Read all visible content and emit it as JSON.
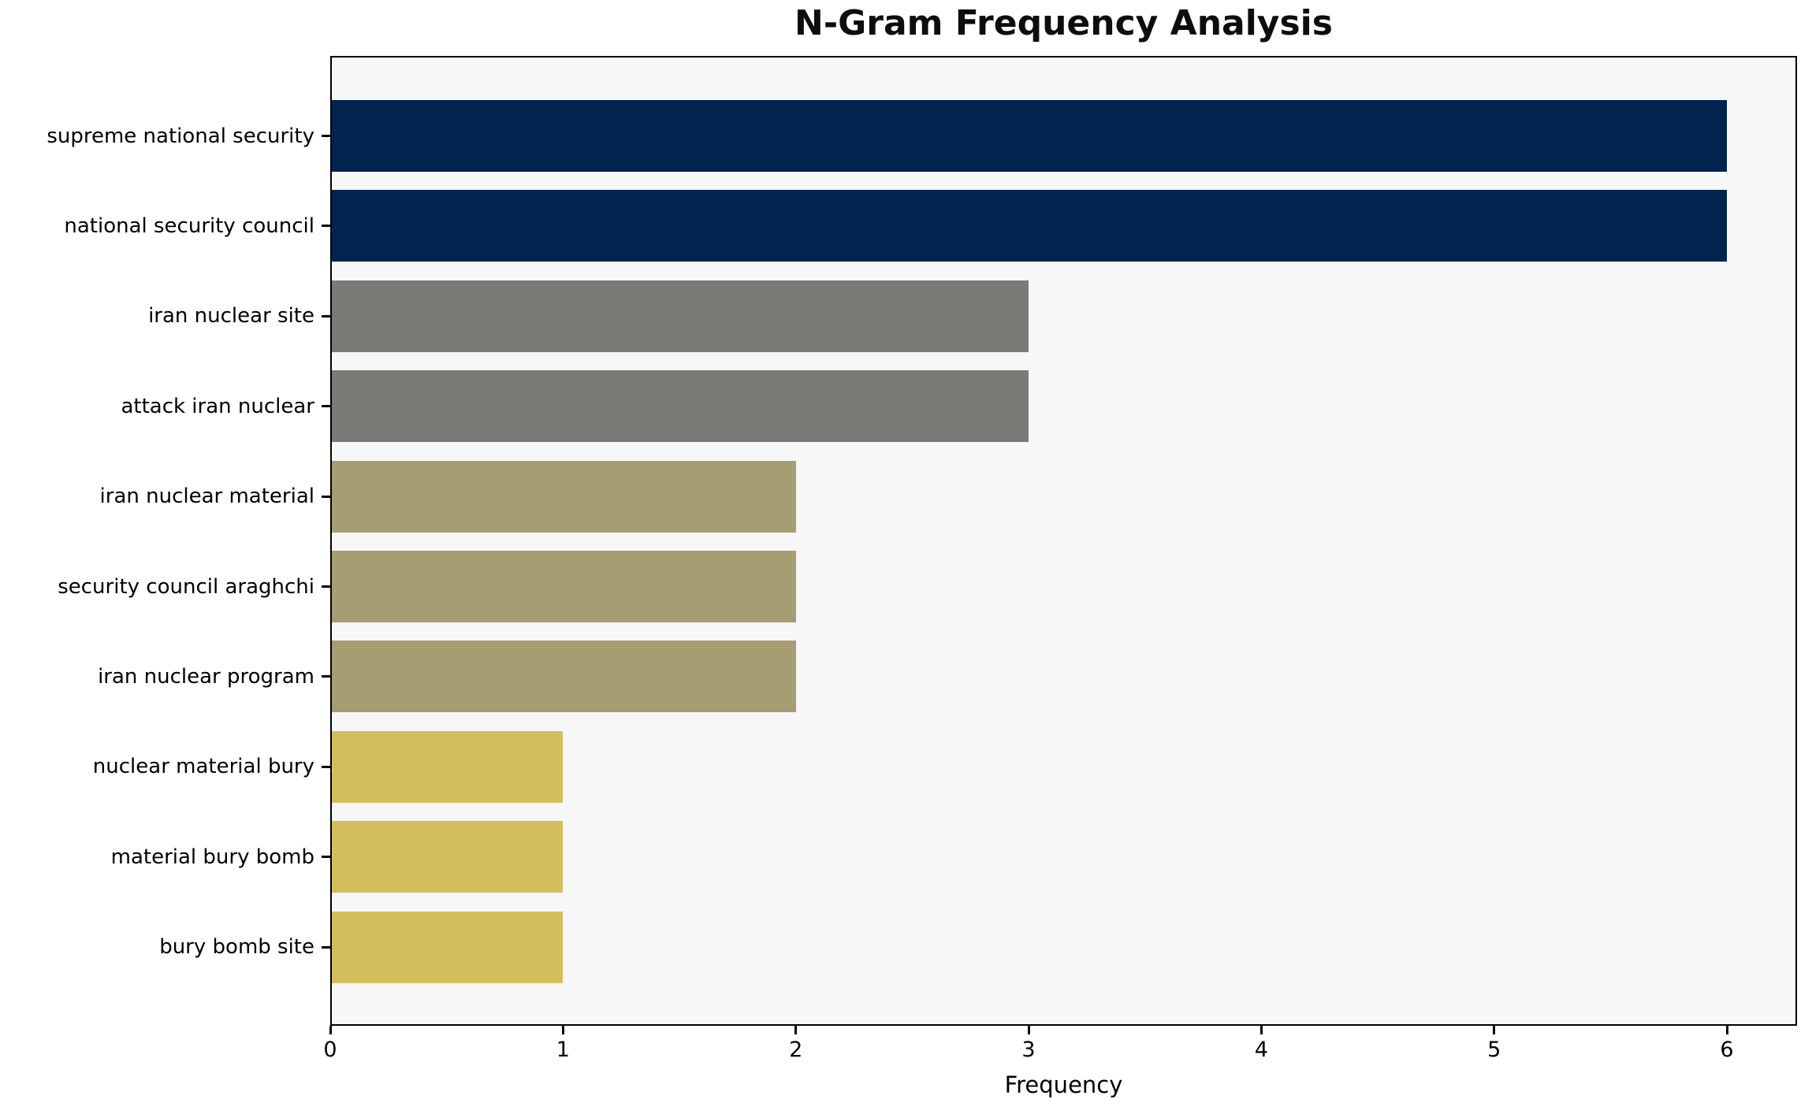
{
  "chart_data": {
    "type": "bar",
    "orientation": "horizontal",
    "title": "N-Gram Frequency Analysis",
    "xlabel": "Frequency",
    "ylabel": "",
    "categories": [
      "supreme national security",
      "national security council",
      "iran nuclear site",
      "attack iran nuclear",
      "iran nuclear material",
      "security council araghchi",
      "iran nuclear program",
      "nuclear material bury",
      "material bury bomb",
      "bury bomb site"
    ],
    "values": [
      6,
      6,
      3,
      3,
      2,
      2,
      2,
      1,
      1,
      1
    ],
    "bar_colors": [
      "#01234e",
      "#01234e",
      "#7b7a76",
      "#7b7a76",
      "#a69d72",
      "#a69d72",
      "#a69d72",
      "#d2be5c",
      "#d2be5c",
      "#d2be5c"
    ],
    "xticks": [
      0,
      1,
      2,
      3,
      4,
      5,
      6
    ],
    "xlim": [
      0,
      6.3
    ],
    "grid": false,
    "legend": null,
    "plot_background": "#f7f7f7",
    "figure_background": "#ffffff"
  }
}
